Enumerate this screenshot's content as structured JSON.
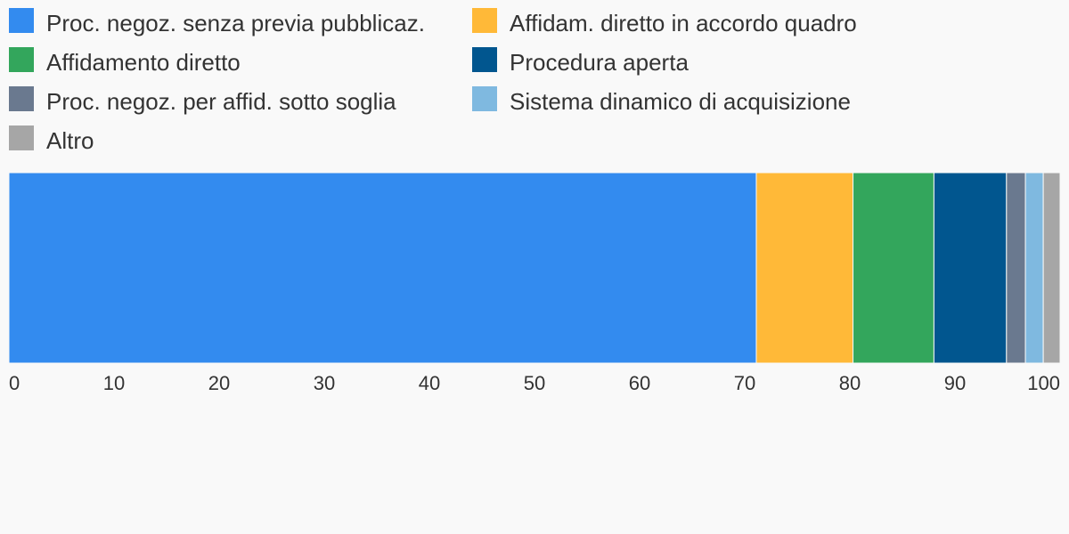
{
  "chart_data": {
    "type": "bar",
    "orientation": "horizontal-stacked",
    "title": "",
    "xlabel": "",
    "ylabel": "",
    "xlim": [
      0,
      100
    ],
    "ticks": [
      "0",
      "10",
      "20",
      "30",
      "40",
      "50",
      "60",
      "70",
      "80",
      "90",
      "100"
    ],
    "grid": false,
    "legend_position": "top",
    "series": [
      {
        "name": "Proc. negoz. senza previa pubblicaz.",
        "value": 71.1,
        "color": "#338bef"
      },
      {
        "name": "Affidam. diretto in accordo quadro",
        "value": 9.2,
        "color": "#ffb938"
      },
      {
        "name": "Affidamento diretto",
        "value": 7.7,
        "color": "#33a65c"
      },
      {
        "name": "Procedura aperta",
        "value": 6.9,
        "color": "#01568f"
      },
      {
        "name": "Proc. negoz. per affid. sotto soglia",
        "value": 1.8,
        "color": "#6a798f"
      },
      {
        "name": "Sistema dinamico di acquisizione",
        "value": 1.7,
        "color": "#7fb9e0"
      },
      {
        "name": "Altro",
        "value": 1.6,
        "color": "#a6a6a6"
      }
    ]
  }
}
